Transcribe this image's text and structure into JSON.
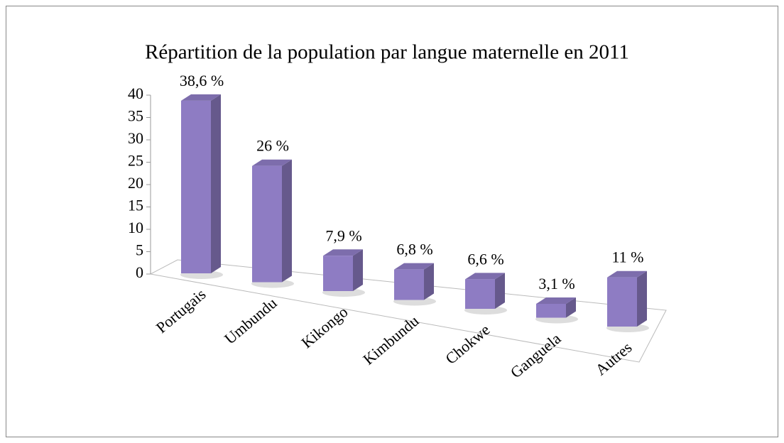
{
  "chart_data": {
    "type": "bar3d",
    "title": "Répartition de la population par langue maternelle en 2011",
    "categories": [
      "Portugais",
      "Umbundu",
      "Kikongo",
      "Kimbundu",
      "Chokwe",
      "Ganguela",
      "Autres"
    ],
    "values": [
      38.6,
      26,
      7.9,
      6.8,
      6.6,
      3.1,
      11
    ],
    "value_labels": [
      "38,6 %",
      "26 %",
      "7,9 %",
      "6,8 %",
      "6,6 %",
      "3,1 %",
      "11 %"
    ],
    "color": "#8e7cc3",
    "ylim": [
      0,
      40
    ],
    "yticks": [
      0,
      5,
      10,
      15,
      20,
      25,
      30,
      35,
      40
    ],
    "grid": false
  }
}
